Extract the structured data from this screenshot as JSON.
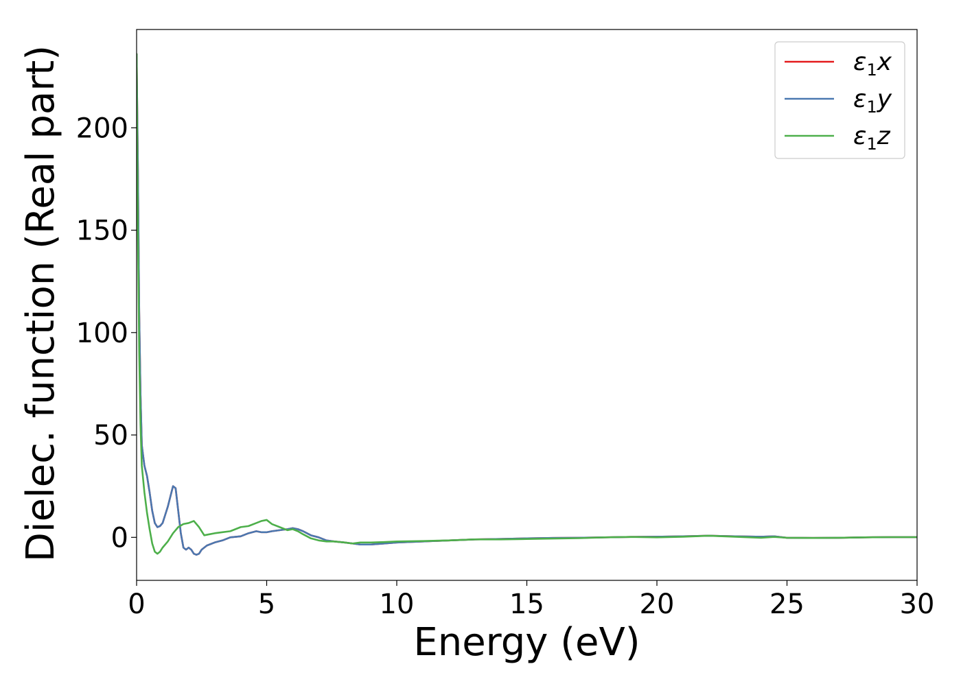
{
  "chart_data": {
    "type": "line",
    "xlabel": "Energy (eV)",
    "ylabel": "Dielec. function (Real part)",
    "xlim": [
      0,
      30
    ],
    "ylim": [
      -21,
      248
    ],
    "xticks": [
      0,
      5,
      10,
      15,
      20,
      25,
      30
    ],
    "yticks": [
      0,
      50,
      100,
      150,
      200
    ],
    "grid": false,
    "legend_position": "top-right",
    "series": [
      {
        "name": "ε1x",
        "label_base": "ε",
        "label_sub": "1",
        "label_tail": "x",
        "color": "#e41a1c",
        "x": [
          0.0,
          0.05,
          0.1,
          0.15,
          0.2,
          0.3,
          0.4,
          0.5,
          0.6,
          0.7,
          0.8,
          0.9,
          1.0,
          1.1,
          1.2,
          1.3,
          1.4,
          1.5,
          1.6,
          1.7,
          1.8,
          1.9,
          2.0,
          2.1,
          2.2,
          2.3,
          2.4,
          2.5,
          2.7,
          3.0,
          3.3,
          3.6,
          4.0,
          4.3,
          4.6,
          4.8,
          5.0,
          5.2,
          5.5,
          5.8,
          6.0,
          6.2,
          6.4,
          6.7,
          7.0,
          7.3,
          7.6,
          8.0,
          8.3,
          8.6,
          9.0,
          9.5,
          10.0,
          11.0,
          12.0,
          13.0,
          14.0,
          15.0,
          16.0,
          17.0,
          18.0,
          19.0,
          20.0,
          21.0,
          22.0,
          23.0,
          24.0,
          24.5,
          25.0,
          26.0,
          27.0,
          28.0,
          29.0,
          30.0
        ],
        "y": [
          236,
          180,
          110,
          70,
          45,
          35,
          30,
          22,
          13,
          7,
          5,
          5.5,
          7,
          11,
          15,
          20,
          25,
          24,
          13,
          2,
          -5,
          -6,
          -5,
          -6,
          -8,
          -8.5,
          -8,
          -6,
          -4,
          -2.5,
          -1.5,
          0,
          0.5,
          2,
          3,
          2.5,
          2.5,
          3,
          3.5,
          4,
          4.5,
          4,
          3,
          1,
          0,
          -1.5,
          -2,
          -2.5,
          -3,
          -3.5,
          -3.5,
          -3,
          -2.5,
          -2,
          -1.5,
          -1,
          -0.8,
          -0.5,
          -0.3,
          -0.2,
          0,
          0.2,
          0.3,
          0.5,
          0.8,
          0.5,
          0.3,
          0.5,
          -0.2,
          -0.3,
          -0.2,
          0,
          0.1,
          0.1
        ]
      },
      {
        "name": "ε1y",
        "label_base": "ε",
        "label_sub": "1",
        "label_tail": "y",
        "color": "#4a78b0",
        "x": [
          0.0,
          0.05,
          0.1,
          0.15,
          0.2,
          0.3,
          0.4,
          0.5,
          0.6,
          0.7,
          0.8,
          0.9,
          1.0,
          1.1,
          1.2,
          1.3,
          1.4,
          1.5,
          1.6,
          1.7,
          1.8,
          1.9,
          2.0,
          2.1,
          2.2,
          2.3,
          2.4,
          2.5,
          2.7,
          3.0,
          3.3,
          3.6,
          4.0,
          4.3,
          4.6,
          4.8,
          5.0,
          5.2,
          5.5,
          5.8,
          6.0,
          6.2,
          6.4,
          6.7,
          7.0,
          7.3,
          7.6,
          8.0,
          8.3,
          8.6,
          9.0,
          9.5,
          10.0,
          11.0,
          12.0,
          13.0,
          14.0,
          15.0,
          16.0,
          17.0,
          18.0,
          19.0,
          20.0,
          21.0,
          22.0,
          23.0,
          24.0,
          24.5,
          25.0,
          26.0,
          27.0,
          28.0,
          29.0,
          30.0
        ],
        "y": [
          236,
          180,
          110,
          70,
          45,
          35,
          30,
          22,
          13,
          7,
          5,
          5.5,
          7,
          11,
          15,
          20,
          25,
          24,
          13,
          2,
          -5,
          -6,
          -5,
          -6,
          -8,
          -8.5,
          -8,
          -6,
          -4,
          -2.5,
          -1.5,
          0,
          0.5,
          2,
          3,
          2.5,
          2.5,
          3,
          3.5,
          4,
          4.5,
          4,
          3,
          1,
          0,
          -1.5,
          -2,
          -2.5,
          -3,
          -3.5,
          -3.5,
          -3,
          -2.5,
          -2,
          -1.5,
          -1,
          -0.8,
          -0.5,
          -0.3,
          -0.2,
          0,
          0.2,
          0.3,
          0.5,
          0.8,
          0.5,
          0.3,
          0.5,
          -0.2,
          -0.3,
          -0.2,
          0,
          0.1,
          0.1
        ]
      },
      {
        "name": "ε1z",
        "label_base": "ε",
        "label_sub": "1",
        "label_tail": "z",
        "color": "#4daf4a",
        "x": [
          0.0,
          0.05,
          0.1,
          0.15,
          0.2,
          0.3,
          0.4,
          0.5,
          0.6,
          0.7,
          0.8,
          0.9,
          1.0,
          1.2,
          1.4,
          1.6,
          1.8,
          2.0,
          2.2,
          2.4,
          2.6,
          2.8,
          3.0,
          3.3,
          3.6,
          4.0,
          4.3,
          4.6,
          4.8,
          5.0,
          5.2,
          5.5,
          5.8,
          6.0,
          6.2,
          6.4,
          6.7,
          7.0,
          7.3,
          7.6,
          8.0,
          8.3,
          8.6,
          9.0,
          9.5,
          10.0,
          11.0,
          12.0,
          13.0,
          14.0,
          15.0,
          16.0,
          17.0,
          18.0,
          19.0,
          20.0,
          21.0,
          22.0,
          23.0,
          24.0,
          24.5,
          25.0,
          26.0,
          27.0,
          28.0,
          29.0,
          30.0
        ],
        "y": [
          236,
          150,
          90,
          55,
          35,
          22,
          12,
          4,
          -3,
          -7,
          -8,
          -7,
          -5,
          -2,
          2,
          5,
          6.5,
          7,
          8,
          5,
          1,
          1.5,
          2,
          2.5,
          3,
          5,
          5.5,
          7,
          8,
          8.5,
          6.5,
          5,
          3.5,
          4,
          3,
          1.5,
          -0.5,
          -1.5,
          -2,
          -2,
          -2.5,
          -3,
          -2.5,
          -2.5,
          -2.3,
          -2,
          -1.8,
          -1.5,
          -1,
          -1,
          -0.8,
          -0.6,
          -0.4,
          0,
          0.2,
          0,
          0.3,
          0.8,
          0.3,
          -0.2,
          0.2,
          -0.2,
          -0.3,
          -0.2,
          0,
          0.1,
          0.1
        ]
      }
    ]
  }
}
